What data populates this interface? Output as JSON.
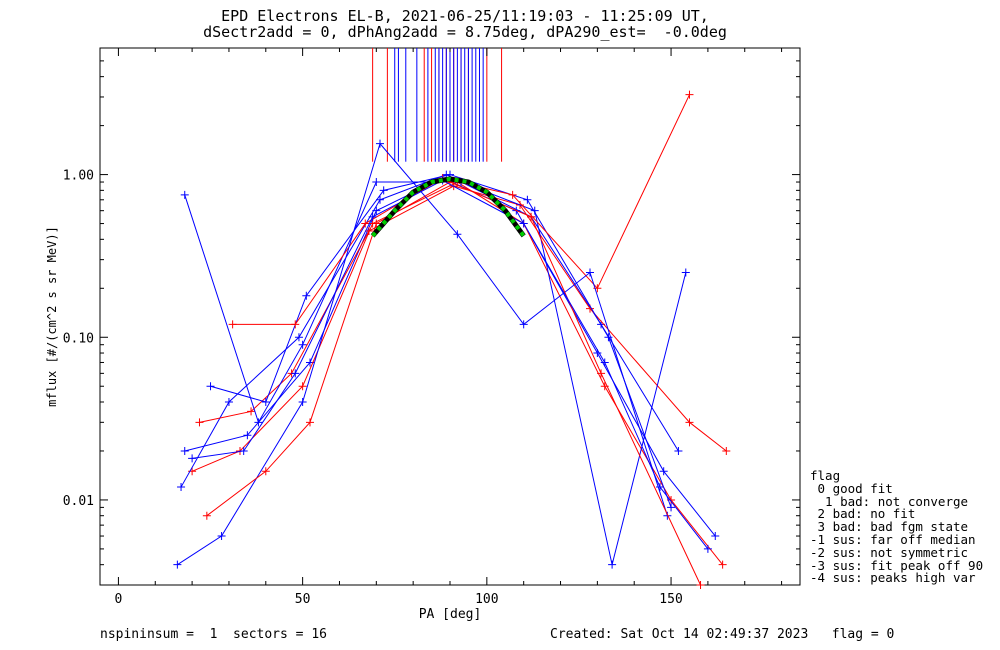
{
  "chart_data": {
    "type": "line",
    "title": "EPD Electrons EL-B, 2021-06-25/11:19:03 - 11:25:09 UT,",
    "subtitle": "dSectr2add = 0, dPhAng2add = 8.75deg, dPA290_est=  -0.0deg",
    "xlabel": "PA [deg]",
    "ylabel": "mflux [#/(cm^2 s sr MeV)]",
    "xlim": [
      -5,
      185
    ],
    "ylim": [
      0.003,
      6.0
    ],
    "yscale": "log",
    "xticks": [
      "0",
      "50",
      "100",
      "150"
    ],
    "yticks": [
      "0.01",
      "0.10",
      "1.00"
    ],
    "grid": false,
    "series": [
      {
        "color": "#0000ff",
        "marker": "+",
        "x": [
          18,
          35,
          52,
          70,
          88,
          108,
          130,
          148,
          162
        ],
        "y": [
          0.02,
          0.025,
          0.07,
          0.6,
          0.95,
          0.6,
          0.08,
          0.015,
          0.006
        ]
      },
      {
        "color": "#ff0000",
        "marker": "+",
        "x": [
          20,
          33,
          50,
          69,
          92,
          110,
          132,
          150,
          164
        ],
        "y": [
          0.015,
          0.02,
          0.05,
          0.5,
          0.9,
          0.5,
          0.05,
          0.01,
          0.004
        ]
      },
      {
        "color": "#0000ff",
        "marker": "+",
        "x": [
          17,
          30,
          49,
          71,
          89,
          112,
          131,
          152
        ],
        "y": [
          0.012,
          0.04,
          0.1,
          0.7,
          1.0,
          0.55,
          0.12,
          0.02
        ]
      },
      {
        "color": "#ff0000",
        "marker": "+",
        "x": [
          22,
          36,
          47,
          68,
          91,
          109,
          128,
          155,
          165
        ],
        "y": [
          0.03,
          0.035,
          0.06,
          0.45,
          0.85,
          0.65,
          0.15,
          0.03,
          0.02
        ]
      },
      {
        "color": "#0000ff",
        "marker": "+",
        "x": [
          25,
          40,
          51,
          72,
          90,
          111,
          133,
          150
        ],
        "y": [
          0.05,
          0.04,
          0.18,
          0.8,
          1.0,
          0.7,
          0.1,
          0.009
        ]
      },
      {
        "color": "#0000ff",
        "marker": "+",
        "x": [
          18,
          38,
          50,
          70,
          93,
          113,
          134,
          154
        ],
        "y": [
          0.75,
          0.03,
          0.09,
          0.9,
          0.9,
          0.6,
          0.004,
          0.25
        ]
      },
      {
        "color": "#ff0000",
        "marker": "+",
        "x": [
          31,
          48,
          67,
          88,
          107,
          130,
          155
        ],
        "y": [
          0.12,
          0.12,
          0.5,
          0.95,
          0.75,
          0.2,
          3.1
        ]
      },
      {
        "color": "#0000ff",
        "marker": "+",
        "x": [
          16,
          28,
          50,
          71,
          92,
          110,
          128,
          149
        ],
        "y": [
          0.004,
          0.006,
          0.04,
          1.55,
          0.43,
          0.12,
          0.25,
          0.008
        ]
      },
      {
        "color": "#ff0000",
        "marker": "+",
        "x": [
          24,
          40,
          52,
          70,
          90,
          112,
          131,
          158
        ],
        "y": [
          0.008,
          0.015,
          0.03,
          0.5,
          0.9,
          0.55,
          0.06,
          0.003
        ]
      },
      {
        "color": "#0000ff",
        "marker": "+",
        "x": [
          20,
          34,
          48,
          69,
          88,
          110,
          132,
          147,
          160
        ],
        "y": [
          0.018,
          0.02,
          0.06,
          0.55,
          0.92,
          0.5,
          0.07,
          0.012,
          0.005
        ]
      }
    ],
    "fit": {
      "color": "#00cc00",
      "style": "dashed",
      "x": [
        69,
        75,
        80,
        85,
        90,
        95,
        100,
        105,
        110
      ],
      "y": [
        0.42,
        0.6,
        0.78,
        0.9,
        0.94,
        0.9,
        0.78,
        0.6,
        0.42
      ]
    },
    "spikes": {
      "blue_x": [
        75,
        76,
        78,
        81,
        84,
        86,
        87,
        88,
        89,
        90,
        91,
        92,
        93,
        94,
        95,
        96,
        97,
        98,
        99
      ],
      "red_x": [
        69,
        73,
        83,
        85,
        87,
        89,
        91,
        93,
        95,
        100,
        104
      ],
      "y_bottom": 1.2
    }
  },
  "legend": {
    "title": "flag",
    "items": [
      " 0 good fit",
      "  1 bad: not converge",
      " 2 bad: no fit",
      " 3 bad: bad fgm state",
      "-1 sus: far off median",
      "-2 sus: not symmetric",
      "-3 sus: fit peak off 90",
      "-4 sus: peaks high var"
    ]
  },
  "footer": {
    "left": "nspininsum =  1  sectors = 16",
    "right": "Created: Sat Oct 14 02:49:37 2023   flag = 0"
  }
}
